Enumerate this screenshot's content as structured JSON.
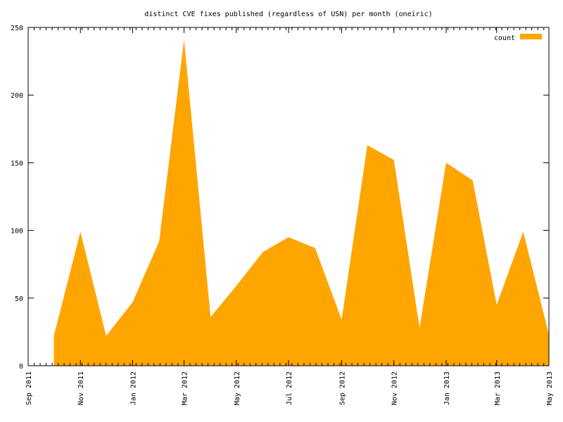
{
  "chart_data": {
    "type": "area",
    "title": "distinct CVE fixes published (regardless of USN) per month (oneiric)",
    "xlabel": "",
    "ylabel": "",
    "ylim": [
      0,
      250
    ],
    "yticks": [
      0,
      50,
      100,
      150,
      200,
      250
    ],
    "xlim": [
      "2011-09-01",
      "2013-05-01"
    ],
    "xticks": [
      {
        "date": "2011-09-01",
        "label": "Sep 2011"
      },
      {
        "date": "2011-11-01",
        "label": "Nov 2011"
      },
      {
        "date": "2012-01-01",
        "label": "Jan 2012"
      },
      {
        "date": "2012-03-01",
        "label": "Mar 2012"
      },
      {
        "date": "2012-05-01",
        "label": "May 2012"
      },
      {
        "date": "2012-07-01",
        "label": "Jul 2012"
      },
      {
        "date": "2012-09-01",
        "label": "Sep 2012"
      },
      {
        "date": "2012-11-01",
        "label": "Nov 2012"
      },
      {
        "date": "2013-01-01",
        "label": "Jan 2013"
      },
      {
        "date": "2013-03-01",
        "label": "Mar 2013"
      },
      {
        "date": "2013-05-01",
        "label": "May 2013"
      }
    ],
    "grid": false,
    "legend_position": "top-right",
    "series": [
      {
        "name": "count",
        "color": "#ffa500",
        "points": [
          {
            "x": "2011-10-01",
            "y": 22
          },
          {
            "x": "2011-11-01",
            "y": 99
          },
          {
            "x": "2011-12-01",
            "y": 22
          },
          {
            "x": "2012-01-01",
            "y": 47
          },
          {
            "x": "2012-02-01",
            "y": 92
          },
          {
            "x": "2012-03-01",
            "y": 241
          },
          {
            "x": "2012-04-01",
            "y": 36
          },
          {
            "x": "2012-05-01",
            "y": 59
          },
          {
            "x": "2012-06-01",
            "y": 84
          },
          {
            "x": "2012-07-01",
            "y": 95
          },
          {
            "x": "2012-08-01",
            "y": 87
          },
          {
            "x": "2012-09-01",
            "y": 34
          },
          {
            "x": "2012-10-01",
            "y": 163
          },
          {
            "x": "2012-11-01",
            "y": 152
          },
          {
            "x": "2012-12-01",
            "y": 28
          },
          {
            "x": "2013-01-01",
            "y": 150
          },
          {
            "x": "2013-02-01",
            "y": 137
          },
          {
            "x": "2013-03-01",
            "y": 45
          },
          {
            "x": "2013-04-01",
            "y": 99
          },
          {
            "x": "2013-05-01",
            "y": 23
          }
        ]
      }
    ]
  }
}
